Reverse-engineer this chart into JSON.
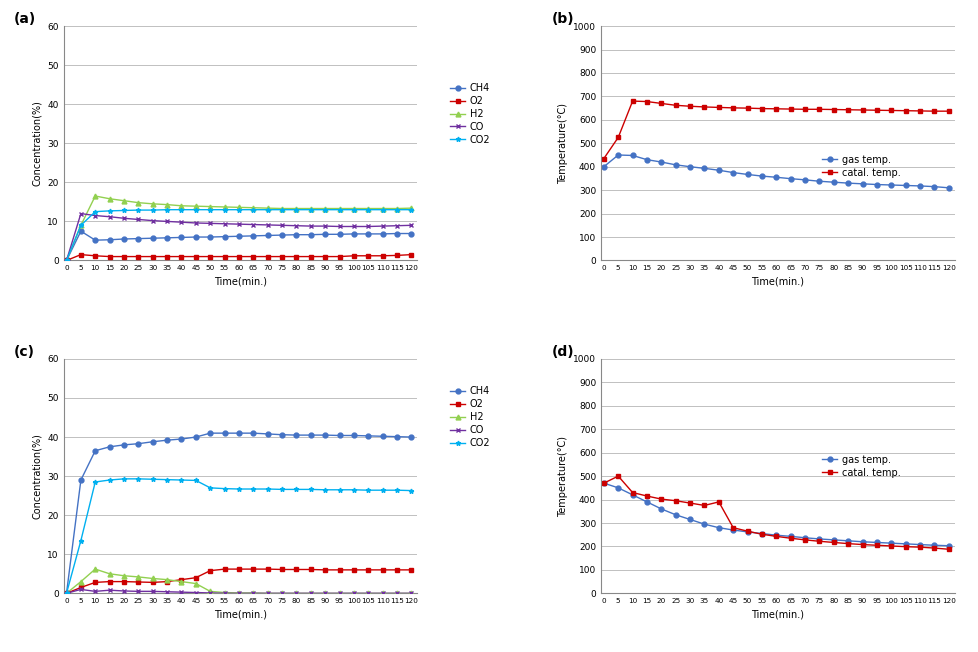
{
  "time_conc": [
    0,
    5,
    10,
    15,
    20,
    25,
    30,
    35,
    40,
    45,
    50,
    55,
    60,
    65,
    70,
    75,
    80,
    85,
    90,
    95,
    100,
    105,
    110,
    115,
    120
  ],
  "time_temp": [
    0,
    5,
    10,
    15,
    20,
    25,
    30,
    35,
    40,
    45,
    50,
    55,
    60,
    65,
    70,
    75,
    80,
    85,
    90,
    95,
    100,
    105,
    110,
    115,
    120
  ],
  "a_CH4": [
    0,
    7.5,
    5.2,
    5.3,
    5.5,
    5.6,
    5.7,
    5.8,
    5.9,
    6.0,
    6.0,
    6.1,
    6.2,
    6.3,
    6.4,
    6.5,
    6.6,
    6.6,
    6.7,
    6.7,
    6.8,
    6.8,
    6.8,
    6.9,
    6.9
  ],
  "a_O2": [
    0,
    1.5,
    1.2,
    1.0,
    1.0,
    1.0,
    1.0,
    1.0,
    1.0,
    1.0,
    1.0,
    1.0,
    1.0,
    1.0,
    1.0,
    1.0,
    1.0,
    1.0,
    1.0,
    1.0,
    1.2,
    1.2,
    1.2,
    1.3,
    1.5
  ],
  "a_H2": [
    0,
    9.0,
    16.5,
    15.8,
    15.3,
    14.8,
    14.5,
    14.3,
    14.0,
    13.9,
    13.8,
    13.7,
    13.6,
    13.5,
    13.4,
    13.3,
    13.3,
    13.3,
    13.3,
    13.3,
    13.3,
    13.3,
    13.3,
    13.3,
    13.4
  ],
  "a_CO": [
    0,
    12.0,
    11.5,
    11.2,
    10.8,
    10.5,
    10.2,
    10.0,
    9.8,
    9.6,
    9.5,
    9.4,
    9.3,
    9.2,
    9.1,
    9.0,
    8.9,
    8.8,
    8.8,
    8.7,
    8.7,
    8.7,
    8.8,
    8.9,
    9.0
  ],
  "a_CO2": [
    0,
    9.0,
    12.5,
    12.7,
    12.8,
    12.9,
    12.9,
    13.0,
    13.0,
    13.0,
    13.0,
    13.0,
    13.0,
    13.0,
    13.0,
    13.0,
    13.0,
    13.0,
    13.0,
    13.0,
    13.0,
    13.0,
    13.0,
    13.0,
    13.0
  ],
  "b_gas": [
    400,
    450,
    448,
    430,
    420,
    408,
    400,
    393,
    385,
    375,
    367,
    360,
    355,
    349,
    344,
    338,
    334,
    330,
    327,
    324,
    322,
    320,
    318,
    315,
    310
  ],
  "b_catal": [
    435,
    525,
    680,
    678,
    670,
    662,
    658,
    655,
    653,
    651,
    650,
    648,
    647,
    646,
    645,
    645,
    644,
    643,
    642,
    641,
    640,
    639,
    638,
    637,
    637
  ],
  "c_CH4": [
    0,
    29.0,
    36.5,
    37.5,
    38.0,
    38.3,
    38.8,
    39.2,
    39.5,
    40.0,
    41.0,
    41.0,
    41.0,
    41.0,
    40.8,
    40.6,
    40.5,
    40.5,
    40.5,
    40.4,
    40.4,
    40.3,
    40.2,
    40.1,
    40.0
  ],
  "c_O2": [
    0,
    1.5,
    2.8,
    3.0,
    3.0,
    2.9,
    2.8,
    3.0,
    3.5,
    4.0,
    5.8,
    6.2,
    6.2,
    6.2,
    6.2,
    6.1,
    6.1,
    6.1,
    6.0,
    6.0,
    6.0,
    6.0,
    6.0,
    6.0,
    6.0
  ],
  "c_H2": [
    0,
    3.0,
    6.2,
    5.0,
    4.5,
    4.2,
    3.8,
    3.5,
    3.0,
    2.5,
    0.5,
    0.2,
    0.1,
    0.1,
    0.0,
    0.0,
    0.0,
    0.0,
    0.0,
    0.0,
    0.0,
    0.0,
    0.0,
    0.0,
    0.0
  ],
  "c_CO": [
    0,
    1.0,
    0.5,
    0.8,
    0.6,
    0.5,
    0.5,
    0.4,
    0.3,
    0.2,
    0.1,
    0.0,
    0.0,
    0.0,
    0.0,
    0.0,
    0.0,
    0.0,
    0.0,
    0.0,
    0.0,
    0.0,
    0.0,
    0.0,
    0.0
  ],
  "c_CO2": [
    0,
    13.5,
    28.5,
    29.0,
    29.3,
    29.3,
    29.2,
    29.1,
    29.0,
    28.9,
    27.0,
    26.8,
    26.7,
    26.7,
    26.7,
    26.6,
    26.6,
    26.6,
    26.5,
    26.5,
    26.5,
    26.4,
    26.4,
    26.4,
    26.3
  ],
  "d_gas": [
    470,
    450,
    420,
    390,
    360,
    335,
    315,
    295,
    280,
    270,
    262,
    255,
    248,
    243,
    237,
    232,
    228,
    224,
    220,
    217,
    214,
    211,
    208,
    205,
    203
  ],
  "d_catal": [
    470,
    500,
    430,
    415,
    402,
    395,
    385,
    375,
    390,
    280,
    265,
    252,
    243,
    235,
    228,
    222,
    217,
    212,
    208,
    205,
    202,
    199,
    197,
    193,
    188
  ],
  "conc_ylim": [
    0,
    60
  ],
  "temp_ylim": [
    0,
    1000
  ],
  "conc_yticks": [
    0,
    10,
    20,
    30,
    40,
    50,
    60
  ],
  "temp_yticks": [
    0,
    100,
    200,
    300,
    400,
    500,
    600,
    700,
    800,
    900,
    1000
  ],
  "CH4_color": "#4472c4",
  "O2_color": "#cc0000",
  "H2_color": "#92d050",
  "CO_color": "#7030a0",
  "CO2_color": "#00b0f0",
  "gas_color": "#4472c4",
  "catal_color": "#cc0000",
  "xlabel": "Time(min.)",
  "ylabel_conc": "Concentration(%)",
  "ylabel_temp": "Temperature(°C)",
  "time_xticks": [
    0,
    5,
    10,
    15,
    20,
    25,
    30,
    35,
    40,
    45,
    50,
    55,
    60,
    65,
    70,
    75,
    80,
    85,
    90,
    95,
    100,
    105,
    110,
    115,
    120
  ]
}
